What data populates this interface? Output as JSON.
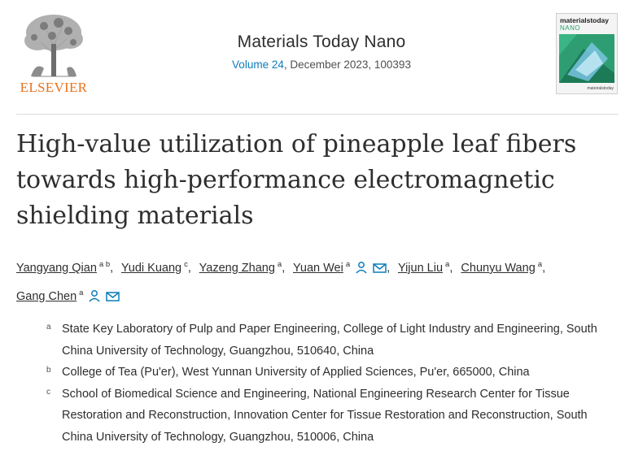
{
  "header": {
    "publisher": "ELSEVIER",
    "journal_title": "Materials Today Nano",
    "volume_link": "Volume 24",
    "issue_info": ", December 2023, 100393",
    "cover": {
      "brand": "materialstoday",
      "sub": "NANO"
    }
  },
  "article": {
    "title": "High-value utilization of pineapple leaf fibers towards high-performance electromagnetic shielding materials"
  },
  "authors": [
    {
      "name": "Yangyang Qian",
      "sup": "a b",
      "sep": ","
    },
    {
      "name": "Yudi Kuang",
      "sup": "c",
      "sep": ","
    },
    {
      "name": "Yazeng Zhang",
      "sup": "a",
      "sep": ","
    },
    {
      "name": "Yuan Wei",
      "sup": "a",
      "sep": ",",
      "icons": true
    },
    {
      "name": "Yijun Liu",
      "sup": "a",
      "sep": ","
    },
    {
      "name": "Chunyu Wang",
      "sup": "a",
      "sep": ","
    },
    {
      "name": "Gang Chen",
      "sup": "a",
      "sep": "",
      "icons": true
    }
  ],
  "affiliations": [
    {
      "label": "a",
      "text": "State Key Laboratory of Pulp and Paper Engineering, College of Light Industry and Engineering, South China University of Technology, Guangzhou, 510640, China"
    },
    {
      "label": "b",
      "text": "College of Tea (Pu'er), West Yunnan University of Applied Sciences, Pu'er, 665000, China"
    },
    {
      "label": "c",
      "text": "School of Biomedical Science and Engineering, National Engineering Research Center for Tissue Restoration and Reconstruction, Innovation Center for Tissue Restoration and Reconstruction, South China University of Technology, Guangzhou, 510006, China"
    }
  ],
  "colors": {
    "link": "#0c7dbb",
    "publisher_orange": "#e9711c",
    "text": "#2e2e2e"
  },
  "icons": {
    "author_profile": "person-icon",
    "email": "envelope-icon"
  }
}
